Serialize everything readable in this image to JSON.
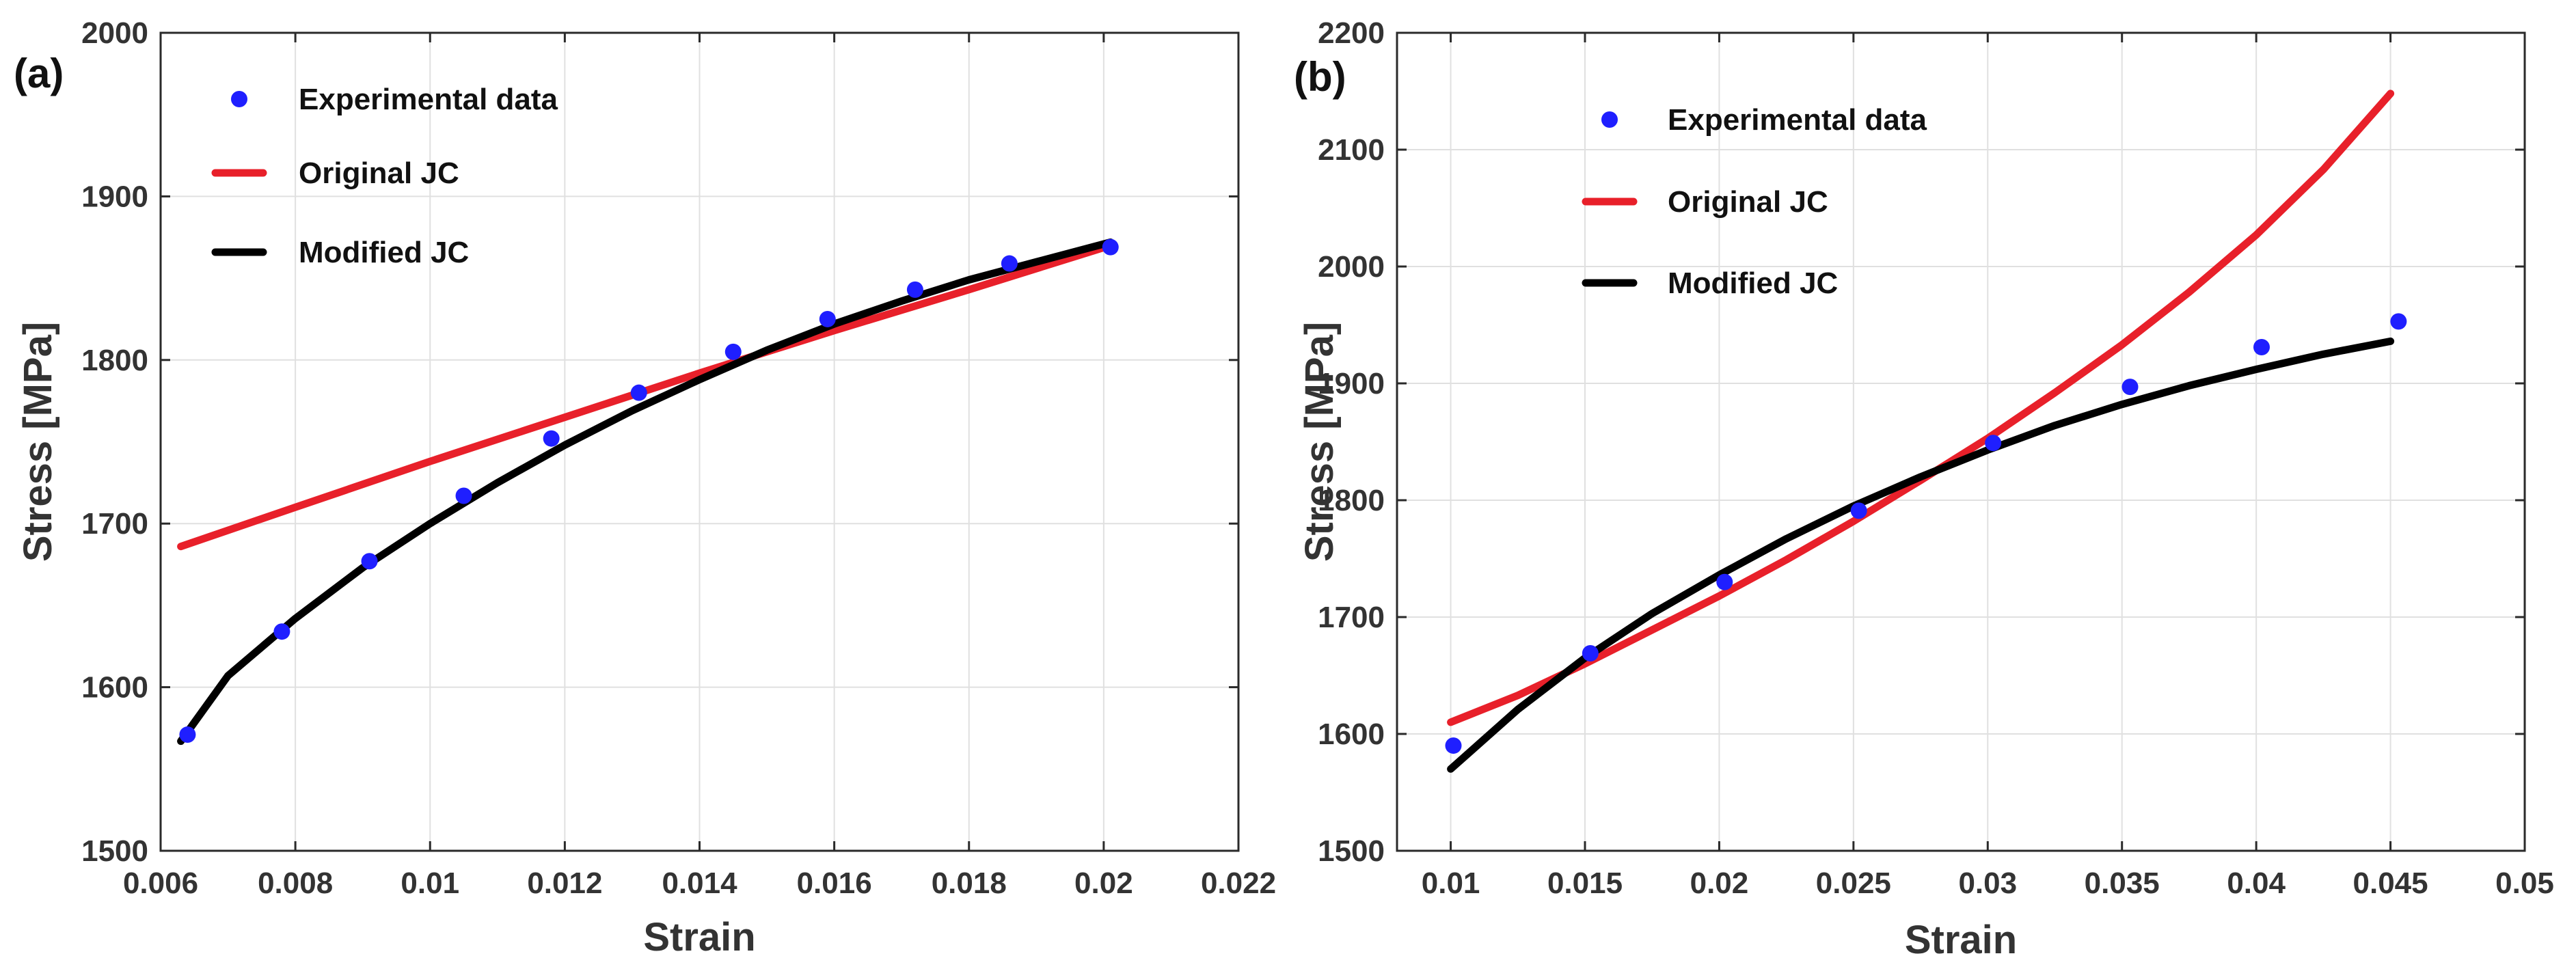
{
  "chart_data": [
    {
      "type": "line",
      "panel_label": "(a)",
      "xlabel": "Strain",
      "ylabel": "Stress [MPa]",
      "xlim": [
        0.006,
        0.022
      ],
      "ylim": [
        1500,
        2000
      ],
      "xticks": [
        0.006,
        0.008,
        0.01,
        0.012,
        0.014,
        0.016,
        0.018,
        0.02,
        0.022
      ],
      "xtick_labels": [
        "0.006",
        "0.008",
        "0.01",
        "0.012",
        "0.014",
        "0.016",
        "0.018",
        "0.02",
        "0.022"
      ],
      "yticks": [
        1500,
        1600,
        1700,
        1800,
        1900,
        2000
      ],
      "ytick_labels": [
        "1500",
        "1600",
        "1700",
        "1800",
        "1900",
        "2000"
      ],
      "grid": true,
      "legend": "top-left",
      "series": [
        {
          "name": "Experimental data",
          "kind": "scatter",
          "color": "#1f1fff",
          "x": [
            0.0064,
            0.0078,
            0.0091,
            0.0105,
            0.0118,
            0.0131,
            0.0145,
            0.0159,
            0.0172,
            0.0186,
            0.0201
          ],
          "y": [
            1571,
            1634,
            1677,
            1717,
            1752,
            1780,
            1805,
            1825,
            1843,
            1859,
            1869
          ]
        },
        {
          "name": "Original JC",
          "kind": "line",
          "color": "#e8202a",
          "x": [
            0.0063,
            0.008,
            0.01,
            0.012,
            0.014,
            0.016,
            0.018,
            0.0201
          ],
          "y": [
            1686,
            1710,
            1738,
            1765,
            1792,
            1818,
            1843,
            1870
          ]
        },
        {
          "name": "Modified JC",
          "kind": "line",
          "color": "#000000",
          "x": [
            0.0063,
            0.007,
            0.008,
            0.009,
            0.01,
            0.011,
            0.012,
            0.013,
            0.014,
            0.015,
            0.016,
            0.017,
            0.018,
            0.019,
            0.0201
          ],
          "y": [
            1567,
            1607,
            1642,
            1673,
            1700,
            1725,
            1748,
            1769,
            1788,
            1806,
            1822,
            1836,
            1849,
            1860,
            1872
          ]
        }
      ]
    },
    {
      "type": "line",
      "panel_label": "(b)",
      "xlabel": "Strain",
      "ylabel": "Stress [MPa]",
      "xlim": [
        0.008,
        0.05
      ],
      "ylim": [
        1500,
        2200
      ],
      "xticks": [
        0.01,
        0.015,
        0.02,
        0.025,
        0.03,
        0.035,
        0.04,
        0.045,
        0.05
      ],
      "xtick_labels": [
        "0.01",
        "0.015",
        "0.02",
        "0.025",
        "0.03",
        "0.035",
        "0.04",
        "0.045",
        "0.05"
      ],
      "yticks": [
        1500,
        1600,
        1700,
        1800,
        1900,
        2000,
        2100,
        2200
      ],
      "ytick_labels": [
        "1500",
        "1600",
        "1700",
        "1800",
        "1900",
        "2000",
        "2100",
        "2200"
      ],
      "grid": true,
      "legend": "top-left",
      "series": [
        {
          "name": "Experimental data",
          "kind": "scatter",
          "color": "#1f1fff",
          "x": [
            0.0101,
            0.0152,
            0.0202,
            0.0252,
            0.0302,
            0.0353,
            0.0402,
            0.0453
          ],
          "y": [
            1590,
            1669,
            1730,
            1791,
            1849,
            1897,
            1931,
            1953
          ]
        },
        {
          "name": "Original JC",
          "kind": "line",
          "color": "#e8202a",
          "x": [
            0.01,
            0.0125,
            0.015,
            0.0175,
            0.02,
            0.0225,
            0.025,
            0.0275,
            0.03,
            0.0325,
            0.035,
            0.0375,
            0.04,
            0.0425,
            0.045
          ],
          "y": [
            1610,
            1633,
            1660,
            1689,
            1718,
            1749,
            1782,
            1817,
            1853,
            1892,
            1933,
            1978,
            2027,
            2083,
            2148
          ]
        },
        {
          "name": "Modified JC",
          "kind": "line",
          "color": "#000000",
          "x": [
            0.01,
            0.0125,
            0.015,
            0.0175,
            0.02,
            0.0225,
            0.025,
            0.0275,
            0.03,
            0.0325,
            0.035,
            0.0375,
            0.04,
            0.0425,
            0.045
          ],
          "y": [
            1570,
            1621,
            1665,
            1703,
            1736,
            1767,
            1795,
            1820,
            1843,
            1864,
            1882,
            1898,
            1912,
            1925,
            1936
          ]
        }
      ]
    }
  ]
}
